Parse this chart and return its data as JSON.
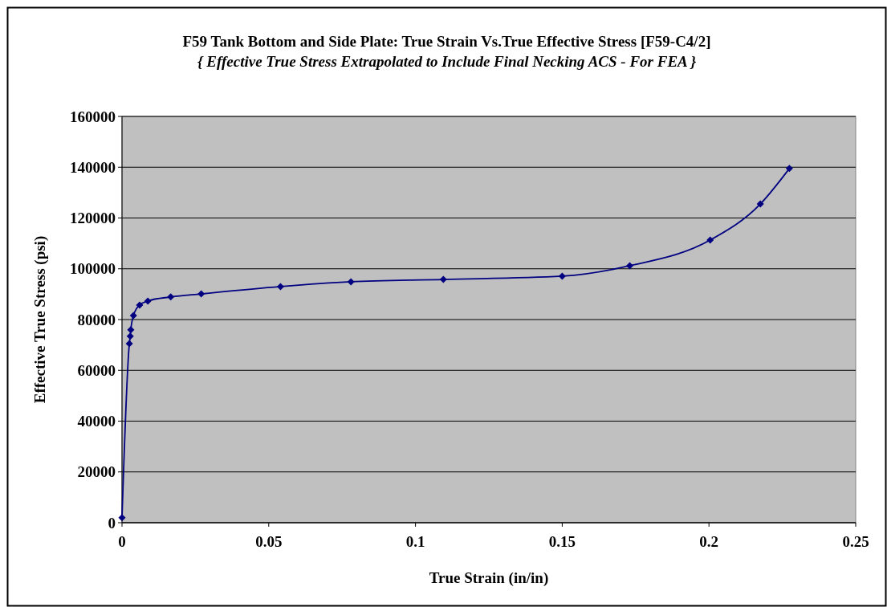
{
  "chart_data": {
    "type": "line",
    "title": "F59 Tank Bottom and Side Plate: True Strain Vs.True Effective Stress [F59-C4/2]",
    "subtitle": "{ Effective True Stress Extrapolated to Include Final Necking ACS - For FEA }",
    "xlabel": "True Strain (in/in)",
    "ylabel": "Effective True Stress (psi)",
    "x": [
      0,
      0.0025,
      0.0028,
      0.003,
      0.0039,
      0.006,
      0.0088,
      0.0166,
      0.027,
      0.054,
      0.078,
      0.1095,
      0.15,
      0.173,
      0.2004,
      0.2175,
      0.2274
    ],
    "series": [
      {
        "color": "#000080",
        "values": [
          2000,
          70500,
          73400,
          76000,
          81600,
          85700,
          87300,
          88900,
          90100,
          93000,
          94900,
          95800,
          97100,
          101200,
          111300,
          125500,
          139500
        ]
      }
    ],
    "xlim": [
      0,
      0.25
    ],
    "xticks": [
      0,
      0.05,
      0.1,
      0.15,
      0.2,
      0.25
    ],
    "ylim": [
      0,
      160000
    ],
    "yticks": [
      0,
      20000,
      40000,
      60000,
      80000,
      100000,
      120000,
      140000,
      160000
    ],
    "grid": "y",
    "marker": "diamond",
    "line_style": "solid"
  }
}
